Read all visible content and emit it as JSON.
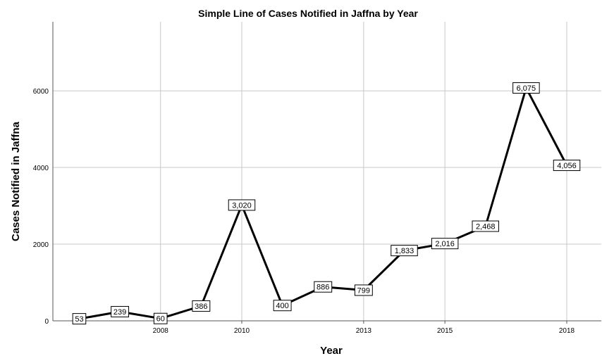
{
  "chart_data": {
    "type": "line",
    "title": "Simple Line of Cases Notified in Jaffna by Year",
    "xlabel": "Year",
    "ylabel": "Cases Notified in Jaffna",
    "x": [
      2006,
      2007,
      2008,
      2009,
      2010,
      2011,
      2012,
      2013,
      2014,
      2015,
      2016,
      2017,
      2018
    ],
    "x_ticks": [
      2008,
      2010,
      2013,
      2015,
      2018
    ],
    "x_tick_labels": [
      "2008",
      "2010",
      "2013",
      "2015",
      "2018"
    ],
    "series": [
      {
        "values": [
          53,
          239,
          60,
          386,
          3020,
          400,
          886,
          799,
          1833,
          2016,
          2468,
          6075,
          4056
        ],
        "labels": [
          "53",
          "239",
          "60",
          "386",
          "3,020",
          "400",
          "886",
          "799",
          "1,833",
          "2,016",
          "2,468",
          "6,075",
          "4,056"
        ]
      }
    ],
    "y_ticks": [
      0,
      2000,
      4000,
      6000
    ],
    "y_tick_labels": [
      "0",
      "2000",
      "4000",
      "6000"
    ],
    "ylim": [
      0,
      7800
    ],
    "grid": true,
    "colors": {
      "line": "#000000",
      "grid": "#c8c8c8"
    }
  }
}
